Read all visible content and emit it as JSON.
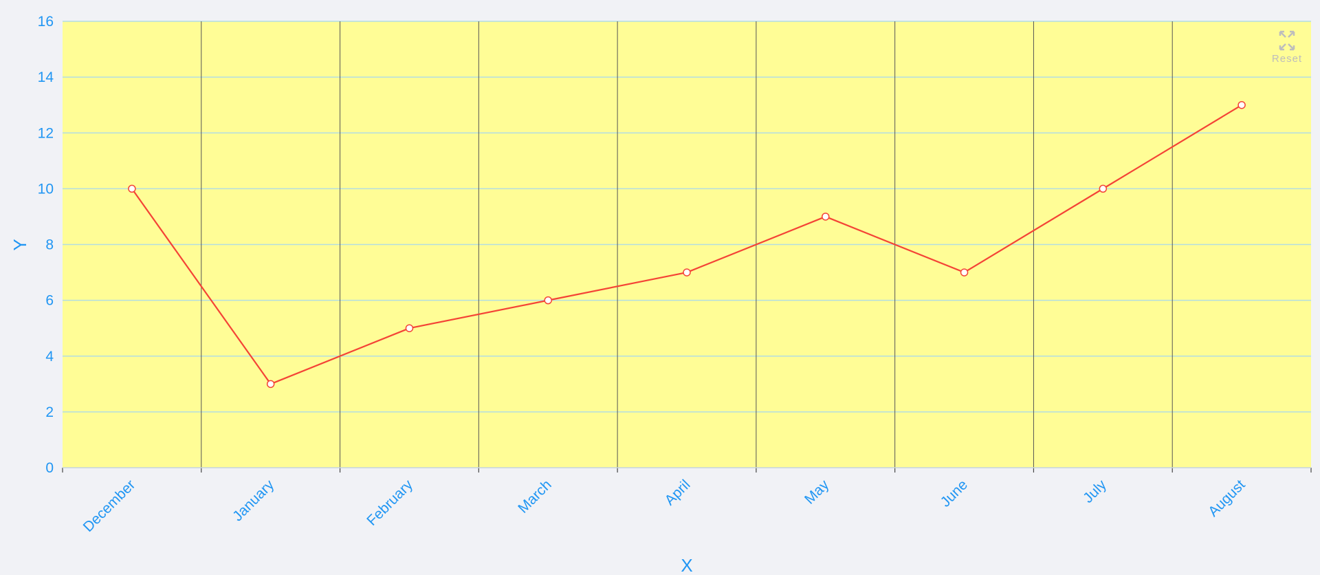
{
  "toolbar": {
    "reset_label": "Reset",
    "reset_icon": "expand-arrows-icon"
  },
  "colors": {
    "page_background": "#f1f2f6",
    "plot_background": "#fffd96",
    "gridline": "#b3dde1",
    "vertical_divider": "#555555",
    "axis_text": "#2196f3",
    "series_line": "#f44336",
    "marker_fill": "#ffffff"
  },
  "chart_data": {
    "type": "line",
    "categories": [
      "December",
      "January",
      "February",
      "March",
      "April",
      "May",
      "June",
      "July",
      "August"
    ],
    "series": [
      {
        "values": [
          10,
          3,
          5,
          6,
          7,
          9,
          7,
          10,
          13
        ]
      }
    ],
    "xlabel": "X",
    "ylabel": "Y",
    "ylim": [
      0,
      16
    ],
    "yticks": [
      0,
      2,
      4,
      6,
      8,
      10,
      12,
      14,
      16
    ],
    "grid": true,
    "markers": true
  }
}
